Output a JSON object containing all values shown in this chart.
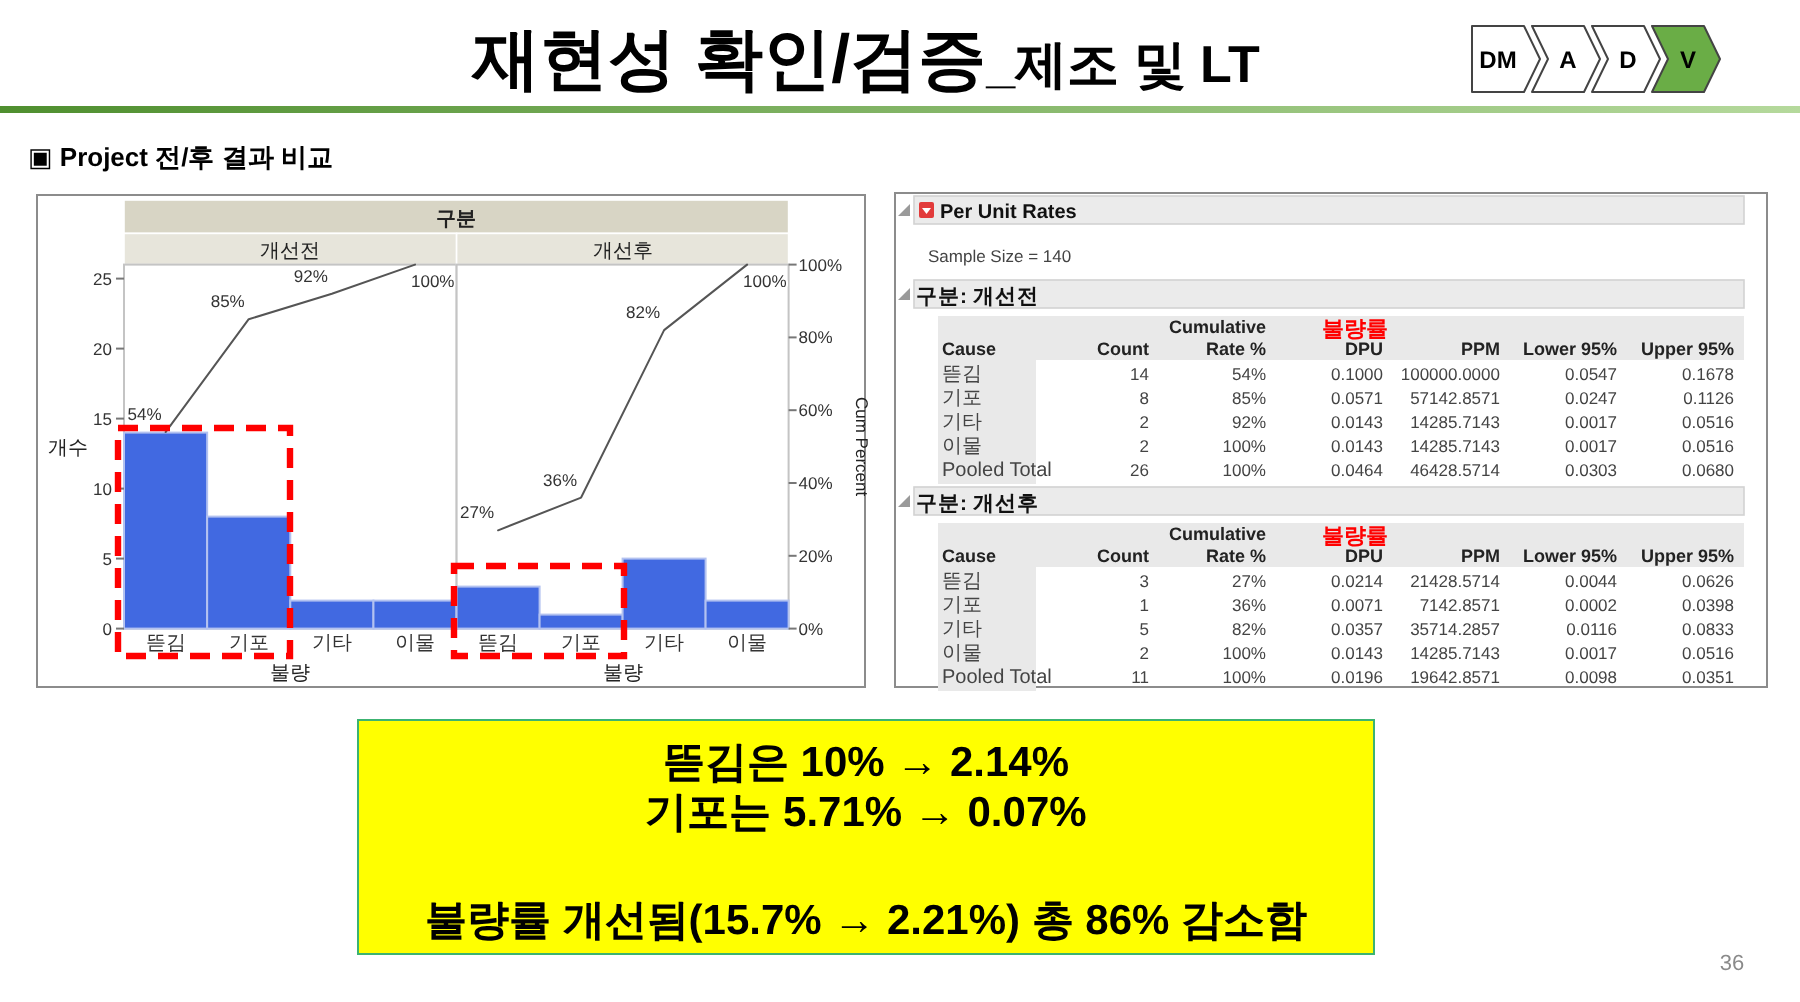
{
  "chart_data": [
    {
      "type": "other",
      "title": "재현성 확인/검증",
      "subtitle": "_제조 및 LT",
      "categories": [
        "DM",
        "A",
        "D",
        "V"
      ],
      "colors": [
        "#ffffff",
        "#ffffff",
        "#ffffff",
        "#6aad46"
      ],
      "annotations": [
        "▣ Project 전/후 결과 비교"
      ]
    },
    {
      "type": "bar",
      "title": "구분",
      "subtitle": "개선전",
      "categories": [
        "뜯김",
        "기포",
        "기타",
        "이물"
      ],
      "xlabel": "불량",
      "ylabel": "개수",
      "ylim": [
        0,
        26
      ],
      "yticks": [
        0,
        5,
        10,
        15,
        20,
        25
      ],
      "y2lim": [
        0,
        100
      ],
      "series": [
        {
          "color": "#4169e1",
          "values": [
            14,
            8,
            2,
            2
          ]
        },
        {
          "type": "line",
          "axis": "y2",
          "color": "#555555",
          "values": [
            54,
            85,
            92,
            100
          ],
          "value_labels": [
            "54%",
            "85%",
            "92%",
            "100%"
          ]
        }
      ]
    },
    {
      "type": "bar",
      "subtitle": "개선후",
      "categories": [
        "뜯김",
        "기포",
        "기타",
        "이물"
      ],
      "xlabel": "불량",
      "y2label": "Cum Percent",
      "ylim": [
        0,
        26
      ],
      "y2lim": [
        0,
        100
      ],
      "y2ticks": [
        {
          "value": 0,
          "label": "0%"
        },
        {
          "value": 20,
          "label": "20%"
        },
        {
          "value": 40,
          "label": "40%"
        },
        {
          "value": 60,
          "label": "60%"
        },
        {
          "value": 80,
          "label": "80%"
        },
        {
          "value": 100,
          "label": "100%"
        }
      ],
      "series": [
        {
          "color": "#4169e1",
          "values": [
            3,
            1,
            5,
            2
          ]
        },
        {
          "type": "line",
          "axis": "y2",
          "color": "#555555",
          "values": [
            27,
            36,
            82,
            100
          ],
          "value_labels": [
            "27%",
            "36%",
            "82%",
            "100%"
          ]
        }
      ]
    },
    {
      "type": "other",
      "title": "Per Unit Rates",
      "subtitle": "Sample Size = 140"
    },
    {
      "type": "other",
      "title": "구분: 개선전",
      "legend_title": "Cause",
      "categories": [
        "Count",
        "Cumulative Rate %",
        "DPU",
        "PPM",
        "Lower 95%",
        "Upper 95%"
      ],
      "series": [
        {
          "name": "뜯김",
          "values": [
            14,
            54,
            0.1,
            100000,
            0.0547,
            0.1678
          ],
          "value_labels": [
            "14",
            "54%",
            "0.1000",
            "100000.0000",
            "0.0547",
            "0.1678"
          ]
        },
        {
          "name": "기포",
          "values": [
            8,
            85,
            0.0571,
            57142.8571,
            0.0247,
            0.1126
          ],
          "value_labels": [
            "8",
            "85%",
            "0.0571",
            "57142.8571",
            "0.0247",
            "0.1126"
          ]
        },
        {
          "name": "기타",
          "values": [
            2,
            92,
            0.0143,
            14285.7143,
            0.0017,
            0.0516
          ],
          "value_labels": [
            "2",
            "92%",
            "0.0143",
            "14285.7143",
            "0.0017",
            "0.0516"
          ]
        },
        {
          "name": "이물",
          "values": [
            2,
            100,
            0.0143,
            14285.7143,
            0.0017,
            0.0516
          ],
          "value_labels": [
            "2",
            "100%",
            "0.0143",
            "14285.7143",
            "0.0017",
            "0.0516"
          ]
        },
        {
          "name": "Pooled Total",
          "values": [
            26,
            100,
            0.0464,
            46428.5714,
            0.0303,
            0.068
          ],
          "value_labels": [
            "26",
            "100%",
            "0.0464",
            "46428.5714",
            "0.0303",
            "0.0680"
          ]
        }
      ],
      "annotations": [
        {
          "text": "불량률",
          "x": "DPU"
        }
      ]
    },
    {
      "type": "other",
      "title": "구분: 개선후",
      "legend_title": "Cause",
      "categories": [
        "Count",
        "Cumulative Rate %",
        "DPU",
        "PPM",
        "Lower 95%",
        "Upper 95%"
      ],
      "series": [
        {
          "name": "뜯김",
          "values": [
            3,
            27,
            0.0214,
            21428.5714,
            0.0044,
            0.0626
          ],
          "value_labels": [
            "3",
            "27%",
            "0.0214",
            "21428.5714",
            "0.0044",
            "0.0626"
          ]
        },
        {
          "name": "기포",
          "values": [
            1,
            36,
            0.0071,
            7142.8571,
            0.0002,
            0.0398
          ],
          "value_labels": [
            "1",
            "36%",
            "0.0071",
            "7142.8571",
            "0.0002",
            "0.0398"
          ]
        },
        {
          "name": "기타",
          "values": [
            5,
            82,
            0.0357,
            35714.2857,
            0.0116,
            0.0833
          ],
          "value_labels": [
            "5",
            "82%",
            "0.0357",
            "35714.2857",
            "0.0116",
            "0.0833"
          ]
        },
        {
          "name": "이물",
          "values": [
            2,
            100,
            0.0143,
            14285.7143,
            0.0017,
            0.0516
          ],
          "value_labels": [
            "2",
            "100%",
            "0.0143",
            "14285.7143",
            "0.0017",
            "0.0516"
          ]
        },
        {
          "name": "Pooled Total",
          "values": [
            11,
            100,
            0.0196,
            19642.8571,
            0.0098,
            0.0351
          ],
          "value_labels": [
            "11",
            "100%",
            "0.0196",
            "19642.8571",
            "0.0098",
            "0.0351"
          ]
        }
      ],
      "annotations": [
        {
          "text": "불량률",
          "x": "DPU"
        }
      ]
    },
    {
      "type": "other",
      "annotations": [
        "뜯김은 10% → 2.14%",
        "기포는 5.71% → 0.07%",
        "불량률 개선됨(15.7% → 2.21%) 총 86% 감소함"
      ]
    },
    {
      "type": "other",
      "annotations": [
        "36"
      ]
    }
  ]
}
